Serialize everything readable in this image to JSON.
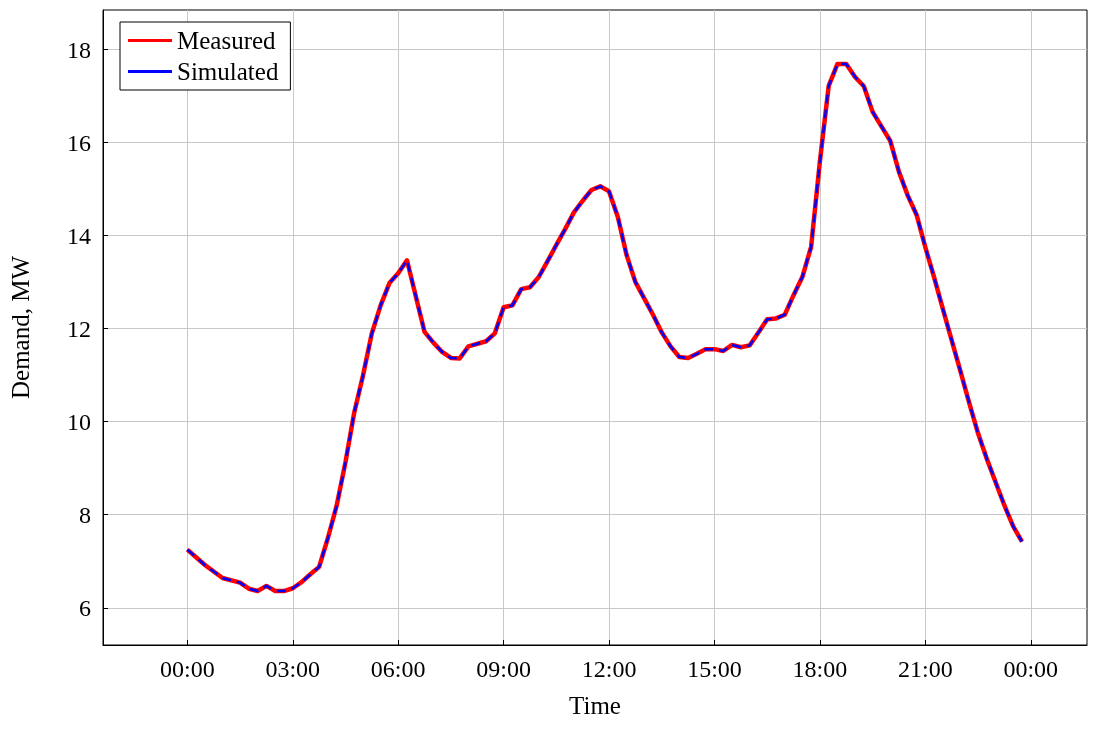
{
  "chart_data": {
    "type": "line",
    "xlabel": "Time",
    "ylabel": "Demand, MW",
    "x": [
      0,
      0.5,
      1,
      1.5,
      1.75,
      2,
      2.25,
      2.5,
      2.75,
      3,
      3.25,
      3.5,
      3.75,
      4,
      4.25,
      4.5,
      4.75,
      5,
      5.25,
      5.5,
      5.75,
      6,
      6.25,
      6.75,
      7,
      7.25,
      7.5,
      7.75,
      8,
      8.5,
      8.75,
      9,
      9.25,
      9.5,
      9.75,
      10,
      10.25,
      10.5,
      10.75,
      11,
      11.25,
      11.5,
      11.75,
      12,
      12.25,
      12.5,
      12.75,
      13,
      13.25,
      13.5,
      13.75,
      14,
      14.25,
      14.5,
      14.75,
      15,
      15.25,
      15.5,
      15.75,
      16,
      16.25,
      16.5,
      16.75,
      17,
      17.25,
      17.5,
      17.75,
      18,
      18.25,
      18.5,
      18.75,
      19,
      19.25,
      19.5,
      19.75,
      20,
      20.25,
      20.5,
      20.75,
      21,
      21.25,
      21.5,
      21.75,
      22,
      22.25,
      22.5,
      22.75,
      23,
      23.25,
      23.5,
      23.75
    ],
    "series": [
      {
        "name": "Measured",
        "color": "#ff0000",
        "line_style": "solid",
        "values": [
          7.25,
          6.92,
          6.64,
          6.54,
          6.41,
          6.36,
          6.47,
          6.36,
          6.36,
          6.42,
          6.55,
          6.72,
          6.88,
          7.5,
          8.2,
          9.13,
          10.2,
          11.0,
          11.9,
          12.5,
          12.98,
          13.19,
          13.47,
          11.93,
          11.7,
          11.5,
          11.37,
          11.36,
          11.62,
          11.73,
          11.9,
          12.46,
          12.5,
          12.85,
          12.89,
          13.11,
          13.45,
          13.8,
          14.14,
          14.5,
          14.75,
          14.98,
          15.06,
          14.95,
          14.4,
          13.58,
          13.0,
          12.65,
          12.3,
          11.92,
          11.62,
          11.39,
          11.37,
          11.46,
          11.56,
          11.56,
          11.52,
          11.65,
          11.6,
          11.64,
          11.92,
          12.2,
          12.22,
          12.3,
          12.72,
          13.11,
          13.76,
          15.6,
          17.22,
          17.69,
          17.69,
          17.41,
          17.21,
          16.66,
          16.35,
          16.04,
          15.37,
          14.86,
          14.45,
          13.75,
          13.1,
          12.42,
          11.75,
          11.08,
          10.4,
          9.75,
          9.2,
          8.7,
          8.2,
          7.75,
          7.42
        ]
      },
      {
        "name": "Simulated",
        "color": "#0000ff",
        "line_style": "dashed",
        "values": [
          7.25,
          6.92,
          6.64,
          6.54,
          6.41,
          6.36,
          6.47,
          6.36,
          6.36,
          6.42,
          6.55,
          6.72,
          6.88,
          7.5,
          8.2,
          9.13,
          10.2,
          11.0,
          11.9,
          12.5,
          12.98,
          13.19,
          13.47,
          11.93,
          11.7,
          11.5,
          11.37,
          11.36,
          11.62,
          11.73,
          11.9,
          12.46,
          12.5,
          12.85,
          12.89,
          13.11,
          13.45,
          13.8,
          14.14,
          14.5,
          14.75,
          14.98,
          15.06,
          14.95,
          14.4,
          13.58,
          13.0,
          12.65,
          12.3,
          11.92,
          11.62,
          11.39,
          11.37,
          11.46,
          11.56,
          11.56,
          11.52,
          11.65,
          11.6,
          11.64,
          11.92,
          12.2,
          12.22,
          12.3,
          12.72,
          13.11,
          13.76,
          15.6,
          17.22,
          17.69,
          17.69,
          17.41,
          17.21,
          16.66,
          16.35,
          16.04,
          15.37,
          14.86,
          14.45,
          13.75,
          13.1,
          12.42,
          11.75,
          11.08,
          10.4,
          9.75,
          9.2,
          8.7,
          8.2,
          7.75,
          7.42
        ]
      }
    ],
    "xlim": [
      -2.4,
      25.6
    ],
    "ylim": [
      5.2,
      18.85
    ],
    "xticks": [
      {
        "value": 0,
        "label": "00:00"
      },
      {
        "value": 3,
        "label": "03:00"
      },
      {
        "value": 6,
        "label": "06:00"
      },
      {
        "value": 9,
        "label": "09:00"
      },
      {
        "value": 12,
        "label": "12:00"
      },
      {
        "value": 15,
        "label": "15:00"
      },
      {
        "value": 18,
        "label": "18:00"
      },
      {
        "value": 21,
        "label": "21:00"
      },
      {
        "value": 24,
        "label": "00:00"
      }
    ],
    "yticks": [
      6,
      8,
      10,
      12,
      14,
      16,
      18
    ],
    "grid": true,
    "legend": "top left",
    "marker": "none"
  }
}
